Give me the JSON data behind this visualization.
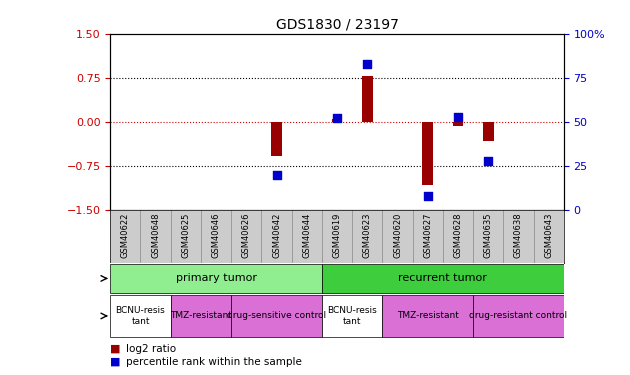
{
  "title": "GDS1830 / 23197",
  "samples": [
    "GSM40622",
    "GSM40648",
    "GSM40625",
    "GSM40646",
    "GSM40626",
    "GSM40642",
    "GSM40644",
    "GSM40619",
    "GSM40623",
    "GSM40620",
    "GSM40627",
    "GSM40628",
    "GSM40635",
    "GSM40638",
    "GSM40643"
  ],
  "log2_ratio": [
    0,
    0,
    0,
    0,
    0,
    -0.58,
    0,
    0.05,
    0.78,
    0,
    -1.08,
    -0.07,
    -0.32,
    0,
    0
  ],
  "percentile_rank": [
    null,
    null,
    null,
    null,
    null,
    20,
    null,
    52,
    83,
    null,
    8,
    53,
    28,
    null,
    null
  ],
  "ylim": [
    -1.5,
    1.5
  ],
  "yticks_left": [
    -1.5,
    -0.75,
    0,
    0.75,
    1.5
  ],
  "yticks_right": [
    0,
    25,
    50,
    75,
    100
  ],
  "bar_color": "#990000",
  "dot_color": "#0000cc",
  "gridline_color": "#000000",
  "zero_line_color": "#cc0000",
  "disease_state_groups": [
    {
      "label": "primary tumor",
      "start": 0,
      "end": 6,
      "color": "#90ee90"
    },
    {
      "label": "recurrent tumor",
      "start": 7,
      "end": 14,
      "color": "#3dcd3d"
    }
  ],
  "cell_line_groups": [
    {
      "label": "BCNU-resistant\ntant",
      "start": 0,
      "end": 1,
      "color": "#ffffff"
    },
    {
      "label": "TMZ-resistant",
      "start": 2,
      "end": 3,
      "color": "#da70d6"
    },
    {
      "label": "drug-sensitive control",
      "start": 4,
      "end": 6,
      "color": "#da70d6"
    },
    {
      "label": "BCNU-resistant\ntant",
      "start": 7,
      "end": 8,
      "color": "#ffffff"
    },
    {
      "label": "TMZ-resistant",
      "start": 9,
      "end": 11,
      "color": "#da70d6"
    },
    {
      "label": "drug-resistant control",
      "start": 12,
      "end": 14,
      "color": "#da70d6"
    }
  ],
  "left_label_color": "#cc0000",
  "right_label_color": "#0000cc",
  "background_color": "#ffffff",
  "sample_bg_color": "#cccccc",
  "bar_width": 0.35,
  "legend_red_label": "log2 ratio",
  "legend_blue_label": "percentile rank within the sample"
}
